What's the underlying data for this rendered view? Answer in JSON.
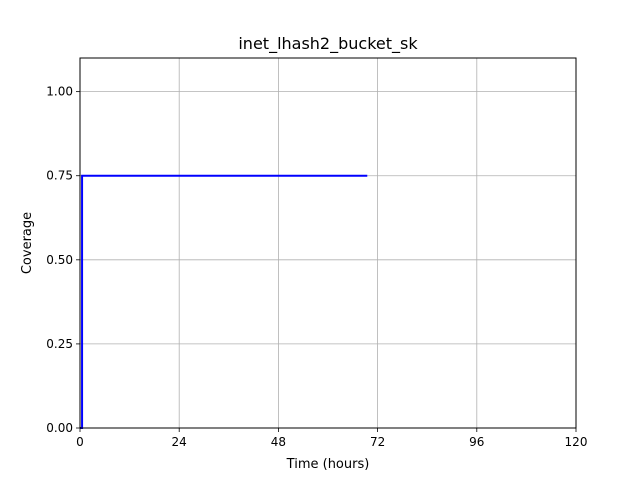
{
  "chart_data": {
    "type": "line",
    "title": "inet_lhash2_bucket_sk",
    "xlabel": "Time (hours)",
    "ylabel": "Coverage",
    "xlim": [
      0,
      120
    ],
    "ylim": [
      0,
      1.1
    ],
    "xticks": [
      0,
      24,
      48,
      72,
      96,
      120
    ],
    "xtick_labels": [
      "0",
      "24",
      "48",
      "72",
      "96",
      "120"
    ],
    "yticks": [
      0,
      0.25,
      0.5,
      0.75,
      1.0
    ],
    "ytick_labels": [
      "0.00",
      "0.25",
      "0.50",
      "0.75",
      "1.00"
    ],
    "grid": true,
    "legend": "none",
    "series": [
      {
        "color": "#0000ff",
        "x": [
          0,
          0.5,
          0.5,
          69.5
        ],
        "y": [
          0,
          0,
          0.75,
          0.75
        ]
      }
    ]
  }
}
